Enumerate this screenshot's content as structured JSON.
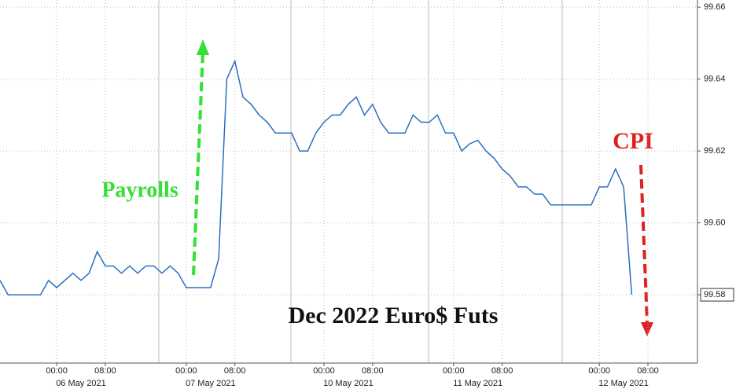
{
  "chart_data": {
    "type": "line",
    "title": "Dec 2022 Euro$ Futs",
    "annotations": [
      {
        "text": "Payrolls",
        "color": "#33e033"
      },
      {
        "text": "CPI",
        "color": "#e02020"
      }
    ],
    "categories": [
      null,
      null,
      null,
      null,
      null,
      null,
      null,
      "00:00",
      null,
      null,
      null,
      null,
      null,
      "08:00",
      null,
      null,
      null,
      null,
      null,
      null,
      null,
      null,
      null,
      "00:00",
      null,
      null,
      null,
      null,
      null,
      "08:00",
      null,
      null,
      null,
      null,
      null,
      null,
      null,
      null,
      null,
      null,
      "00:00",
      null,
      null,
      null,
      null,
      null,
      "08:00",
      null,
      null,
      null,
      null,
      null,
      null,
      null,
      null,
      null,
      "00:00",
      null,
      null,
      null,
      null,
      null,
      "08:00",
      null,
      null,
      null,
      null,
      null,
      null,
      null,
      null,
      null,
      null,
      null,
      "00:00",
      null,
      null,
      null,
      null,
      null,
      "08:00",
      null,
      null,
      null,
      null,
      null
    ],
    "dates": [
      "06 May 2021",
      "07 May 2021",
      "10 May 2021",
      "11 May 2021",
      "12 May 2021"
    ],
    "series": [
      {
        "color": "#2a6fc0",
        "values": [
          99.584,
          99.58,
          99.58,
          99.58,
          99.58,
          99.58,
          99.584,
          99.582,
          99.584,
          99.586,
          99.584,
          99.586,
          99.592,
          99.588,
          99.588,
          99.586,
          99.588,
          99.586,
          99.588,
          99.588,
          99.586,
          99.588,
          99.586,
          99.582,
          99.582,
          99.582,
          99.582,
          99.59,
          99.64,
          99.645,
          99.635,
          99.633,
          99.63,
          99.628,
          99.625,
          99.625,
          99.625,
          99.62,
          99.62,
          99.625,
          99.628,
          99.63,
          99.63,
          99.633,
          99.635,
          99.63,
          99.633,
          99.628,
          99.625,
          99.625,
          99.625,
          99.63,
          99.628,
          99.628,
          99.63,
          99.625,
          99.625,
          99.62,
          99.622,
          99.623,
          99.62,
          99.618,
          99.615,
          99.613,
          99.61,
          99.61,
          99.608,
          99.608,
          99.605,
          99.605,
          99.605,
          99.605,
          99.605,
          99.605,
          99.61,
          99.61,
          99.615,
          99.61,
          99.58,
          null,
          null,
          null,
          null,
          null,
          null,
          null
        ]
      }
    ],
    "last_label": {
      "value": 99.58,
      "label": "99.58"
    },
    "ylim": [
      99.561,
      99.662
    ],
    "yticks": [
      {
        "value": 99.58,
        "label": "99.58"
      },
      {
        "value": 99.6,
        "label": "99.60"
      },
      {
        "value": 99.62,
        "label": "99.62"
      },
      {
        "value": 99.64,
        "label": "99.64"
      },
      {
        "value": 99.66,
        "label": "99.66"
      }
    ],
    "grid": true
  }
}
